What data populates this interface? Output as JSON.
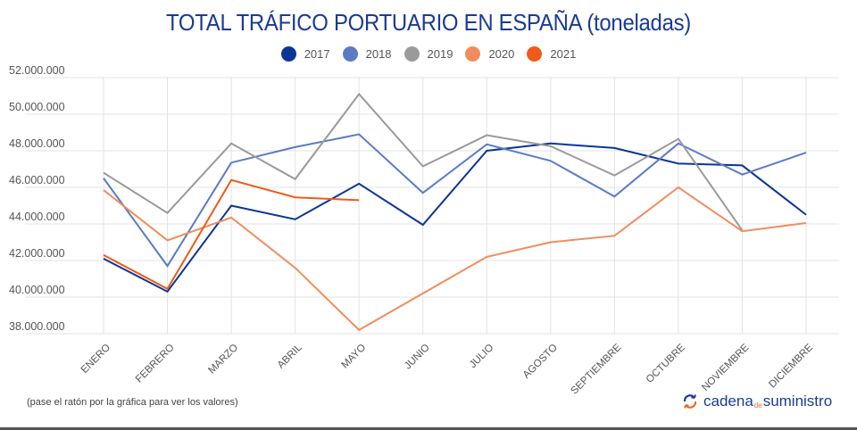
{
  "chart_data": {
    "type": "line",
    "title": "TOTAL TRÁFICO PORTUARIO EN ESPAÑA (toneladas)",
    "xlabel": "",
    "ylabel": "",
    "ylim": [
      38000000,
      52000000
    ],
    "yticks": [
      38000000,
      40000000,
      42000000,
      44000000,
      46000000,
      48000000,
      50000000,
      52000000
    ],
    "ytick_labels": [
      "38.000.000",
      "40.000.000",
      "42.000.000",
      "44.000.000",
      "46.000.000",
      "48.000.000",
      "50.000.000",
      "52.000.000"
    ],
    "grid": true,
    "legend_position": "top-center",
    "categories": [
      "ENERO",
      "FEBRERO",
      "MARZO",
      "ABRIL",
      "MAYO",
      "JUNIO",
      "JULIO",
      "AGOSTO",
      "SEPTIEMBRE",
      "OCTUBRE",
      "NOVIEMBRE",
      "DICIEMBRE"
    ],
    "series": [
      {
        "name": "2017",
        "color": "#0d3594",
        "values": [
          42100000,
          40300000,
          45000000,
          44250000,
          46200000,
          43950000,
          48000000,
          48400000,
          48150000,
          47300000,
          47200000,
          44500000
        ]
      },
      {
        "name": "2018",
        "color": "#5b7bc4",
        "values": [
          46500000,
          41700000,
          47350000,
          48200000,
          48900000,
          45700000,
          48350000,
          47450000,
          45500000,
          48400000,
          46700000,
          47900000
        ]
      },
      {
        "name": "2019",
        "color": "#9a9a9a",
        "values": [
          46800000,
          44600000,
          48400000,
          46450000,
          51100000,
          47150000,
          48850000,
          48250000,
          46650000,
          48650000,
          43650000,
          null
        ]
      },
      {
        "name": "2020",
        "color": "#f28c5c",
        "values": [
          45850000,
          43100000,
          44350000,
          41600000,
          38200000,
          40200000,
          42200000,
          43000000,
          43350000,
          46000000,
          43600000,
          44050000
        ]
      },
      {
        "name": "2021",
        "color": "#f05a1a",
        "values": [
          42300000,
          40450000,
          46400000,
          45450000,
          45300000,
          null,
          null,
          null,
          null,
          null,
          null,
          null
        ]
      }
    ]
  },
  "footer": {
    "hint": "(pase el ratón por la gráfica para ver los valores)",
    "brand_main": "cadena",
    "brand_de": "de",
    "brand_end": "suministro"
  }
}
